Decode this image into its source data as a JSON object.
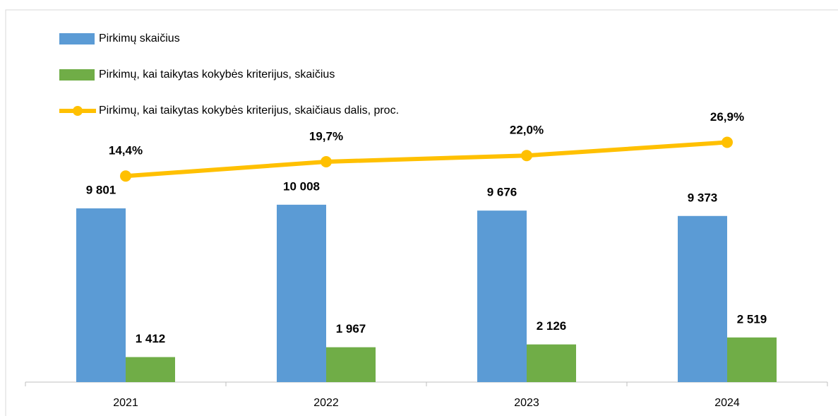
{
  "chart_data": {
    "type": "bar",
    "categories": [
      "2021",
      "2022",
      "2023",
      "2024"
    ],
    "series": [
      {
        "name": "Pirkimų skaičius",
        "type": "bar",
        "color": "#5b9bd5",
        "values": [
          9801,
          10008,
          9676,
          9373
        ],
        "value_labels": [
          "9 801",
          "10 008",
          "9 676",
          "9 373"
        ]
      },
      {
        "name": "Pirkimų, kai taikytas kokybės kriterijus, skaičius",
        "type": "bar",
        "color": "#70ad47",
        "values": [
          1412,
          1967,
          2126,
          2519
        ],
        "value_labels": [
          "1 412",
          "1 967",
          "2 126",
          "2 519"
        ]
      },
      {
        "name": "Pirkimų, kai taikytas kokybės kriterijus, skaičiaus dalis, proc.",
        "type": "line",
        "axis": "y2",
        "color": "#ffc000",
        "values": [
          14.4,
          19.7,
          22.0,
          26.9
        ],
        "value_labels": [
          "14,4%",
          "19,7%",
          "22,0%",
          "26,9%"
        ]
      }
    ],
    "ylim": [
      0,
      21000
    ],
    "y2lim": [
      -62,
      76
    ],
    "legend": "top-left"
  }
}
